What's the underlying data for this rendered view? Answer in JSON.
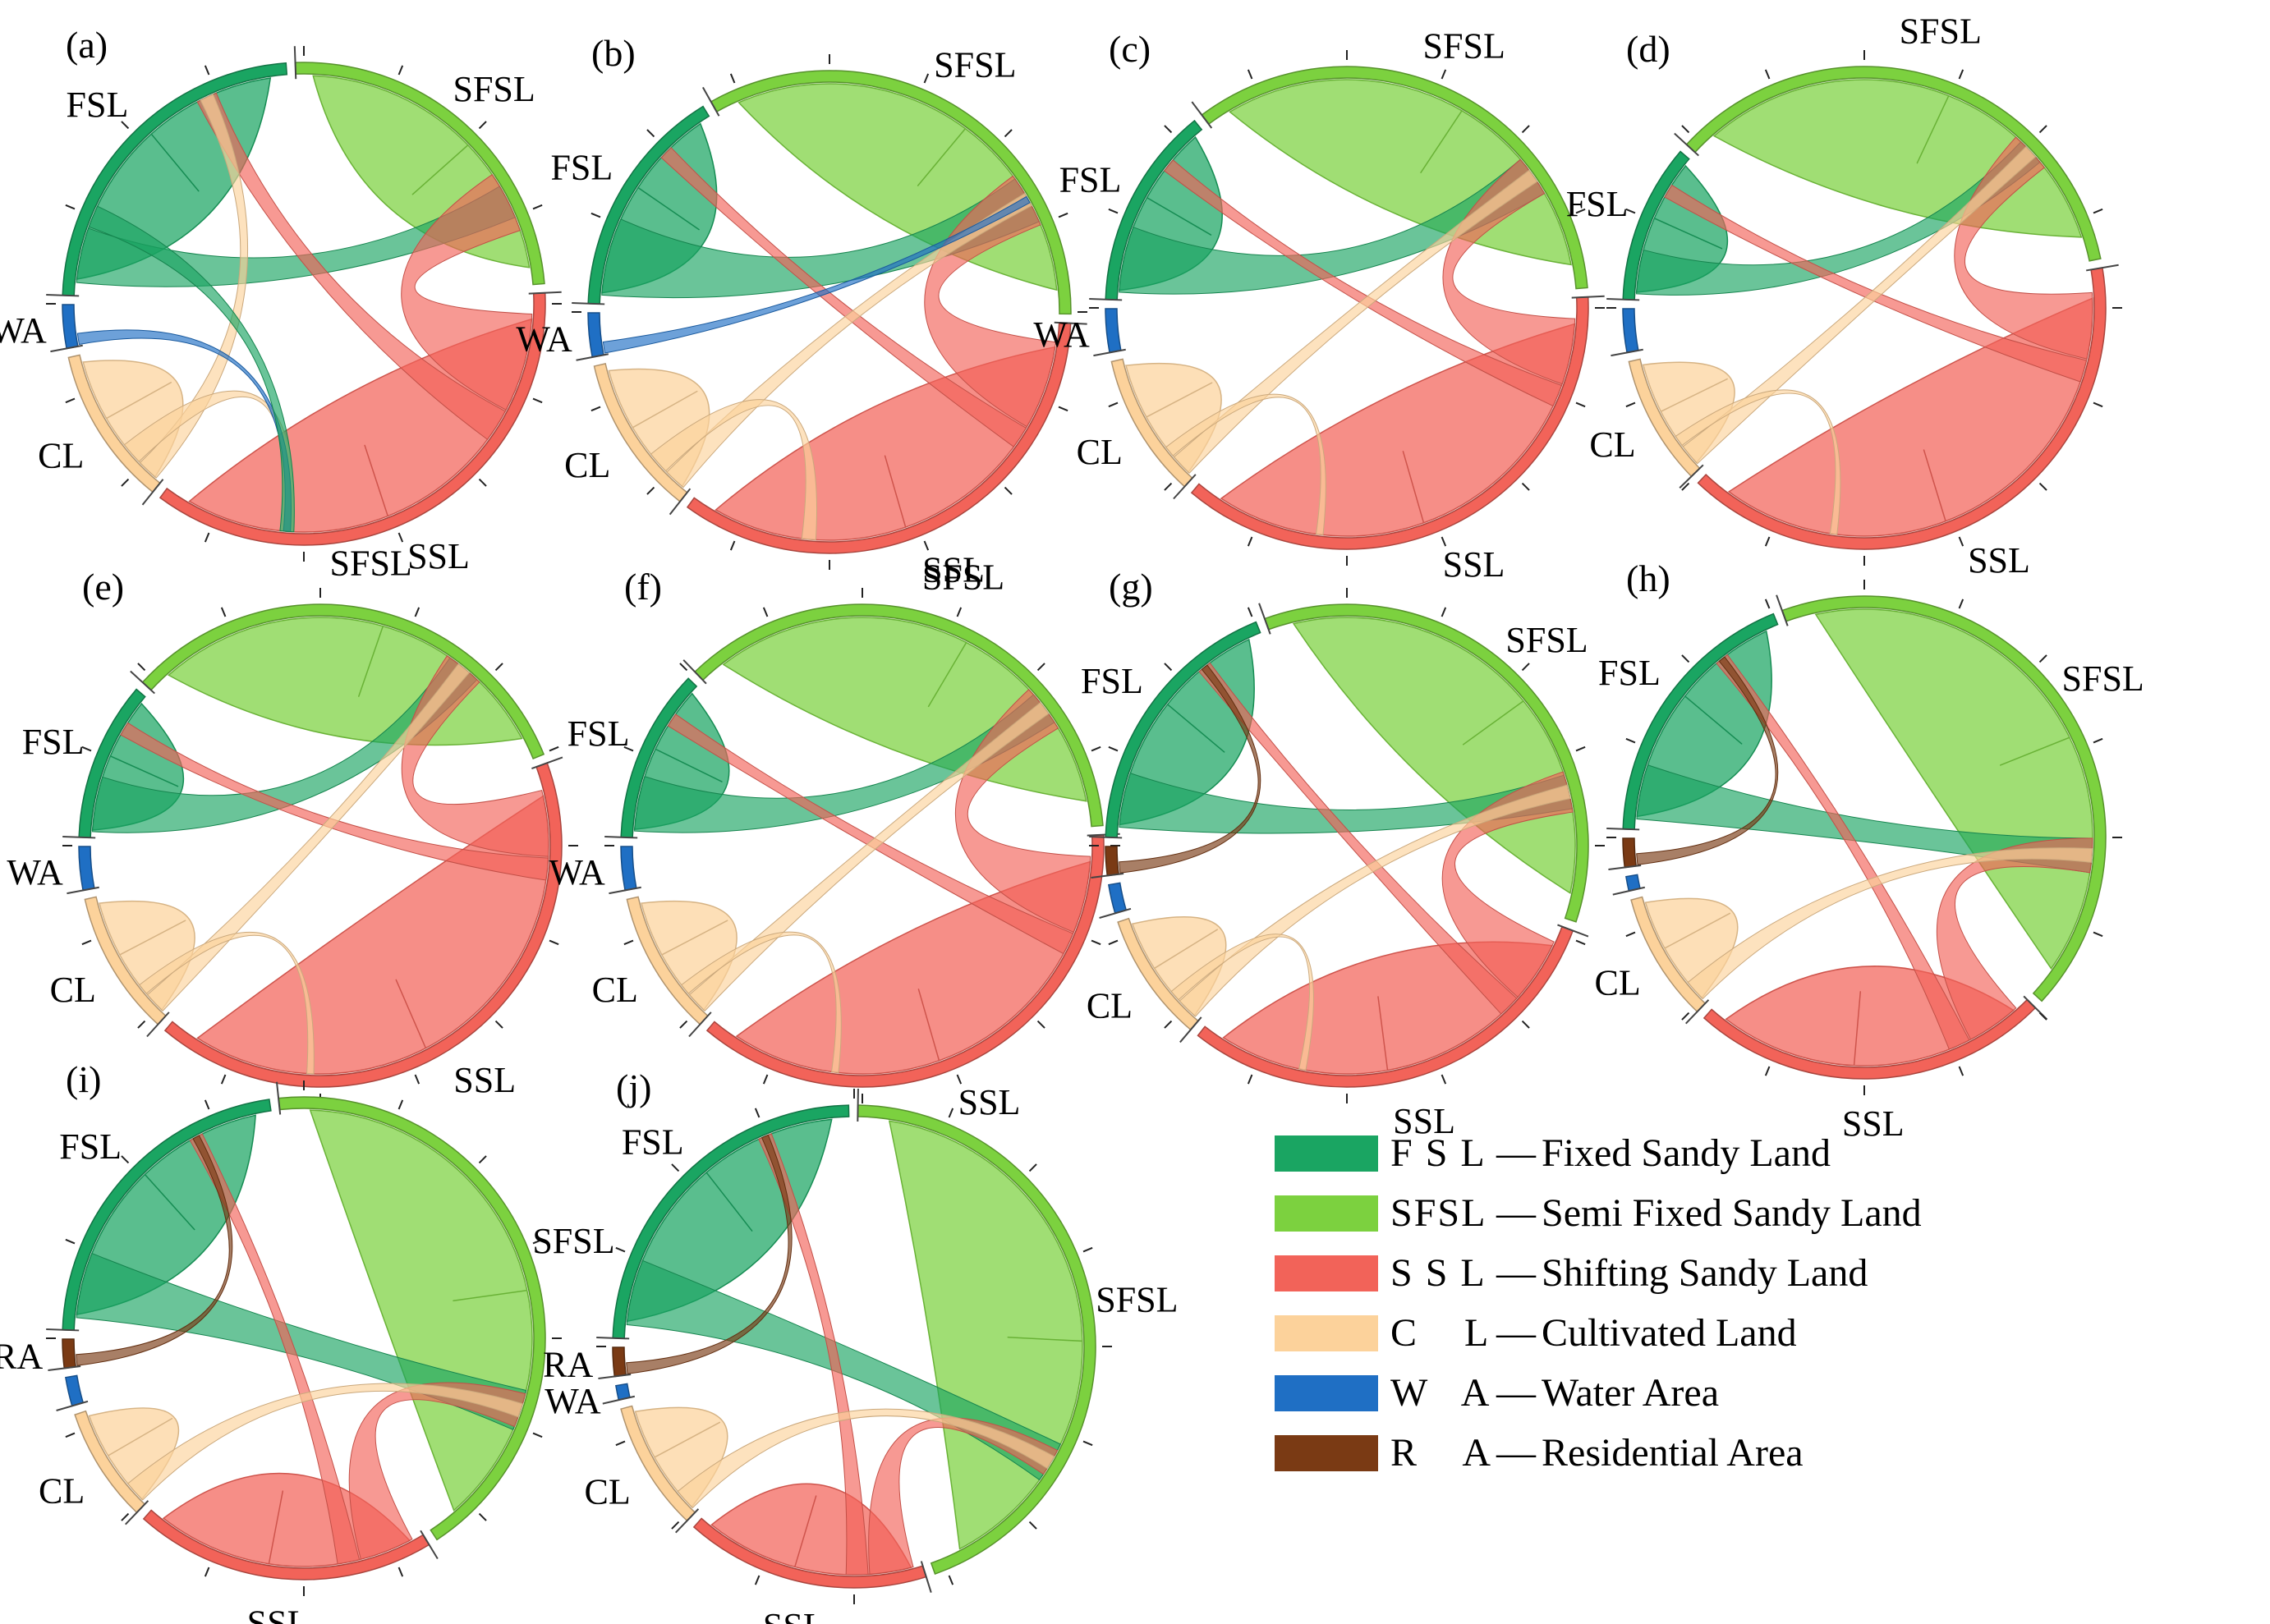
{
  "chart_data": {
    "type": "chord",
    "title": "",
    "legend": {
      "position": "bottom-right",
      "entries": [
        {
          "code": "F S L",
          "key": "FSL",
          "name": "Fixed Sandy Land",
          "color": "#1aa562"
        },
        {
          "code": "SFSL",
          "key": "SFSL",
          "name": "Semi Fixed Sandy Land",
          "color": "#7cd13f"
        },
        {
          "code": "S S L",
          "key": "SSL",
          "name": "Shifting Sandy Land",
          "color": "#f26359"
        },
        {
          "code": "C    L",
          "key": "CL",
          "name": "Cultivated Land",
          "color": "#fcd29b"
        },
        {
          "code": "W   A",
          "key": "WA",
          "name": "Water Area",
          "color": "#1f6fc4"
        },
        {
          "code": "R    A",
          "key": "RA",
          "name": "Residential Area",
          "color": "#7a3a14"
        }
      ]
    },
    "separator": "—",
    "colors": {
      "FSL": "#1aa562",
      "SFSL": "#7cd13f",
      "SSL": "#f26359",
      "CL": "#fcd29b",
      "WA": "#1f6fc4",
      "RA": "#7a3a14"
    },
    "panels": [
      {
        "label": "(a)",
        "arcs": {
          "FSL": 24,
          "SFSL": 25,
          "SSL": 37,
          "CL": 11,
          "WA": 3,
          "RA": 0
        },
        "flows": [
          [
            "FSL",
            "SFSL",
            5
          ],
          [
            "SSL",
            "SFSL",
            9
          ],
          [
            "SSL",
            "FSL",
            3
          ],
          [
            "CL",
            "FSL",
            2
          ],
          [
            "CL",
            "SSL",
            2
          ],
          [
            "WA",
            "SSL",
            1
          ],
          [
            "FSL",
            "SSL",
            2
          ]
        ],
        "arc_labels": [
          {
            "text": "FSL",
            "key": "FSL"
          },
          {
            "text": "SFSL",
            "key": "SFSL"
          },
          {
            "text": "SSL",
            "key": "SSL"
          },
          {
            "text": "CL",
            "key": "CL"
          },
          {
            "text": "WA",
            "key": "WA"
          }
        ]
      },
      {
        "label": "(b)",
        "arcs": {
          "FSL": 16,
          "SFSL": 34,
          "SSL": 35,
          "CL": 11,
          "WA": 3,
          "RA": 0
        },
        "flows": [
          [
            "FSL",
            "SFSL",
            7
          ],
          [
            "SSL",
            "SFSL",
            8
          ],
          [
            "SSL",
            "FSL",
            2
          ],
          [
            "CL",
            "SFSL",
            2
          ],
          [
            "CL",
            "SSL",
            2
          ],
          [
            "WA",
            "SFSL",
            1
          ]
        ],
        "arc_labels": [
          {
            "text": "FSL",
            "key": "FSL"
          },
          {
            "text": "SFSL",
            "key": "SFSL"
          },
          {
            "text": "SSL",
            "key": "SSL"
          },
          {
            "text": "CL",
            "key": "CL"
          },
          {
            "text": "WA",
            "key": "WA"
          }
        ]
      },
      {
        "label": "(c)",
        "arcs": {
          "FSL": 14,
          "SFSL": 35,
          "SSL": 38,
          "CL": 10,
          "WA": 3,
          "RA": 0
        },
        "flows": [
          [
            "FSL",
            "SFSL",
            6
          ],
          [
            "SSL",
            "SFSL",
            6
          ],
          [
            "SSL",
            "FSL",
            2
          ],
          [
            "CL",
            "SFSL",
            2
          ],
          [
            "CL",
            "SSL",
            1
          ]
        ],
        "arc_labels": [
          {
            "text": "FSL",
            "key": "FSL"
          },
          {
            "text": "SFSL",
            "key": "SFSL"
          },
          {
            "text": "SSL",
            "key": "SSL"
          },
          {
            "text": "CL",
            "key": "CL"
          },
          {
            "text": "WA",
            "key": "WA"
          }
        ]
      },
      {
        "label": "(d)",
        "arcs": {
          "FSL": 11,
          "SFSL": 36,
          "SSL": 41,
          "CL": 9,
          "WA": 3,
          "RA": 0
        },
        "flows": [
          [
            "FSL",
            "SFSL",
            4
          ],
          [
            "SSL",
            "SFSL",
            6
          ],
          [
            "SSL",
            "FSL",
            2
          ],
          [
            "CL",
            "SFSL",
            2
          ],
          [
            "CL",
            "SSL",
            1
          ]
        ],
        "arc_labels": [
          {
            "text": "FSL",
            "key": "FSL"
          },
          {
            "text": "SFSL",
            "key": "SFSL"
          },
          {
            "text": "SSL",
            "key": "SSL"
          },
          {
            "text": "CL",
            "key": "CL"
          }
        ]
      },
      {
        "label": "(e)",
        "arcs": {
          "FSL": 11,
          "SFSL": 33,
          "SSL": 43,
          "CL": 10,
          "WA": 3,
          "RA": 0
        },
        "flows": [
          [
            "FSL",
            "SFSL",
            5
          ],
          [
            "SSL",
            "SFSL",
            6
          ],
          [
            "SSL",
            "FSL",
            2
          ],
          [
            "CL",
            "SFSL",
            2
          ],
          [
            "CL",
            "SSL",
            1
          ]
        ],
        "arc_labels": [
          {
            "text": "FSL",
            "key": "FSL"
          },
          {
            "text": "SFSL",
            "key": "SFSL"
          },
          {
            "text": "SSL",
            "key": "SSL"
          },
          {
            "text": "CL",
            "key": "CL"
          },
          {
            "text": "WA",
            "key": "WA"
          }
        ]
      },
      {
        "label": "(f)",
        "arcs": {
          "FSL": 12,
          "SFSL": 37,
          "SSL": 38,
          "CL": 10,
          "WA": 3,
          "RA": 0
        },
        "flows": [
          [
            "FSL",
            "SFSL",
            5
          ],
          [
            "SSL",
            "SFSL",
            7
          ],
          [
            "SSL",
            "FSL",
            2
          ],
          [
            "CL",
            "SFSL",
            2
          ],
          [
            "CL",
            "SSL",
            1
          ]
        ],
        "arc_labels": [
          {
            "text": "FSL",
            "key": "FSL"
          },
          {
            "text": "SFSL",
            "key": "SFSL"
          },
          {
            "text": "SSL",
            "key": "SSL"
          },
          {
            "text": "CL",
            "key": "CL"
          },
          {
            "text": "WA",
            "key": "WA"
          }
        ]
      },
      {
        "label": "(g)",
        "arcs": {
          "FSL": 19,
          "SFSL": 37,
          "SSL": 31,
          "CL": 9,
          "WA": 2,
          "RA": 2
        },
        "flows": [
          [
            "FSL",
            "SFSL",
            5
          ],
          [
            "SSL",
            "SFSL",
            6
          ],
          [
            "SSL",
            "FSL",
            2
          ],
          [
            "CL",
            "SFSL",
            2
          ],
          [
            "CL",
            "SSL",
            1
          ],
          [
            "RA",
            "FSL",
            1
          ]
        ],
        "arc_labels": [
          {
            "text": "FSL",
            "key": "FSL"
          },
          {
            "text": "SFSL",
            "key": "SFSL"
          },
          {
            "text": "SSL",
            "key": "SSL"
          },
          {
            "text": "CL",
            "key": "CL"
          }
        ]
      },
      {
        "label": "(h)",
        "arcs": {
          "FSL": 19,
          "SFSL": 44,
          "SSL": 25,
          "CL": 9,
          "WA": 1,
          "RA": 2
        },
        "flows": [
          [
            "FSL",
            "SFSL",
            5
          ],
          [
            "SSL",
            "SFSL",
            5
          ],
          [
            "SSL",
            "FSL",
            2
          ],
          [
            "CL",
            "SFSL",
            2
          ],
          [
            "RA",
            "FSL",
            1
          ]
        ],
        "arc_labels": [
          {
            "text": "FSL",
            "key": "FSL"
          },
          {
            "text": "SFSL",
            "key": "SFSL"
          },
          {
            "text": "SSL",
            "key": "SSL"
          },
          {
            "text": "CL",
            "key": "CL"
          }
        ]
      },
      {
        "label": "(i)",
        "arcs": {
          "FSL": 23,
          "SFSL": 44,
          "SSL": 21,
          "CL": 8,
          "WA": 2,
          "RA": 2
        },
        "flows": [
          [
            "FSL",
            "SFSL",
            6
          ],
          [
            "SSL",
            "SFSL",
            5
          ],
          [
            "SSL",
            "FSL",
            2
          ],
          [
            "CL",
            "SFSL",
            2
          ],
          [
            "RA",
            "FSL",
            1
          ]
        ],
        "arc_labels": [
          {
            "text": "FSL",
            "key": "FSL"
          },
          {
            "text": "SFSL",
            "key": "SFSL"
          },
          {
            "text": "SSL",
            "key": "SSL"
          },
          {
            "text": "CL",
            "key": "CL"
          },
          {
            "text": "RA",
            "key": "RA"
          }
        ]
      },
      {
        "label": "(j)",
        "arcs": {
          "FSL": 25,
          "SFSL": 46,
          "SSL": 17,
          "CL": 9,
          "WA": 1,
          "RA": 2
        },
        "flows": [
          [
            "FSL",
            "SFSL",
            6
          ],
          [
            "SSL",
            "SFSL",
            4
          ],
          [
            "SSL",
            "FSL",
            2
          ],
          [
            "CL",
            "SFSL",
            2
          ],
          [
            "RA",
            "FSL",
            1
          ]
        ],
        "arc_labels": [
          {
            "text": "FSL",
            "key": "FSL"
          },
          {
            "text": "SFSL",
            "key": "SFSL"
          },
          {
            "text": "SSL",
            "key": "SSL"
          },
          {
            "text": "CL",
            "key": "CL"
          },
          {
            "text": "WA",
            "key": "WA"
          },
          {
            "text": "RA",
            "key": "RA"
          }
        ]
      }
    ]
  }
}
